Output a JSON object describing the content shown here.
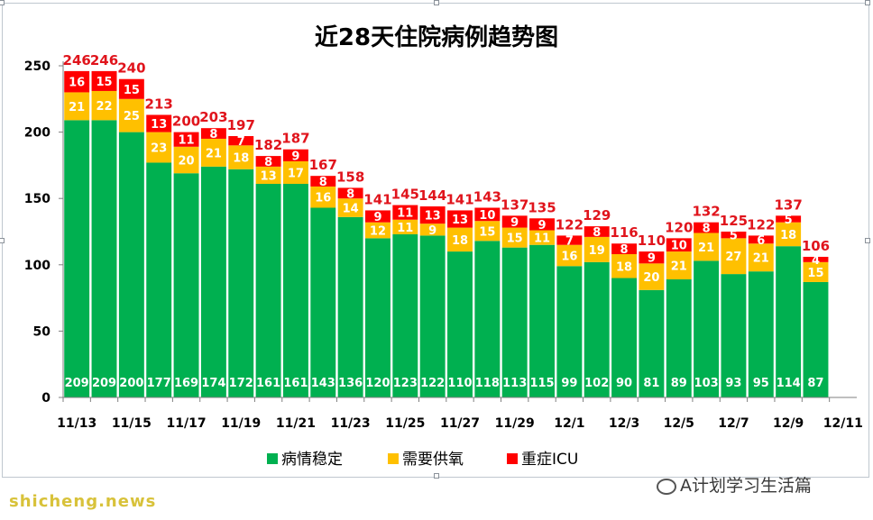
{
  "chart_data": {
    "type": "bar",
    "stacked": true,
    "title": "近28天住院病例趋势图",
    "ylim": [
      0,
      250
    ],
    "yticks": [
      0,
      50,
      100,
      150,
      200,
      250
    ],
    "categories": [
      "11/13",
      "11/14",
      "11/15",
      "11/16",
      "11/17",
      "11/18",
      "11/19",
      "11/20",
      "11/21",
      "11/22",
      "11/23",
      "11/24",
      "11/25",
      "11/26",
      "11/27",
      "11/28",
      "11/29",
      "11/30",
      "12/1",
      "12/2",
      "12/3",
      "12/4",
      "12/5",
      "12/6",
      "12/7",
      "12/8",
      "12/9",
      "12/10",
      "12/11"
    ],
    "xtick_labels": [
      "11/13",
      "11/15",
      "11/17",
      "11/19",
      "11/21",
      "11/23",
      "11/25",
      "11/27",
      "11/29",
      "12/1",
      "12/3",
      "12/5",
      "12/7",
      "12/9",
      "12/11"
    ],
    "series": [
      {
        "name": "病情稳定",
        "color": "#00b050",
        "values": [
          209,
          209,
          200,
          177,
          169,
          174,
          172,
          161,
          161,
          143,
          136,
          120,
          123,
          122,
          110,
          118,
          113,
          115,
          99,
          102,
          90,
          81,
          89,
          103,
          93,
          95,
          114,
          87,
          null
        ]
      },
      {
        "name": "需要供氧",
        "color": "#ffc000",
        "values": [
          21,
          22,
          25,
          23,
          20,
          21,
          18,
          13,
          17,
          16,
          14,
          12,
          11,
          9,
          18,
          15,
          15,
          11,
          16,
          19,
          18,
          20,
          21,
          21,
          27,
          21,
          18,
          15,
          null
        ]
      },
      {
        "name": "重症ICU",
        "color": "#ff0000",
        "values": [
          16,
          15,
          15,
          13,
          11,
          8,
          7,
          8,
          9,
          8,
          8,
          9,
          11,
          13,
          13,
          10,
          9,
          9,
          7,
          8,
          8,
          9,
          10,
          8,
          5,
          6,
          5,
          4,
          null
        ]
      }
    ],
    "totals": [
      246,
      246,
      240,
      213,
      200,
      203,
      197,
      182,
      187,
      167,
      158,
      141,
      145,
      144,
      141,
      143,
      137,
      135,
      122,
      129,
      116,
      110,
      120,
      132,
      125,
      122,
      137,
      106,
      null
    ],
    "legend_position": "bottom",
    "grid": false
  },
  "watermark": "A计划学习生活篇",
  "source_text": "shicheng.news"
}
